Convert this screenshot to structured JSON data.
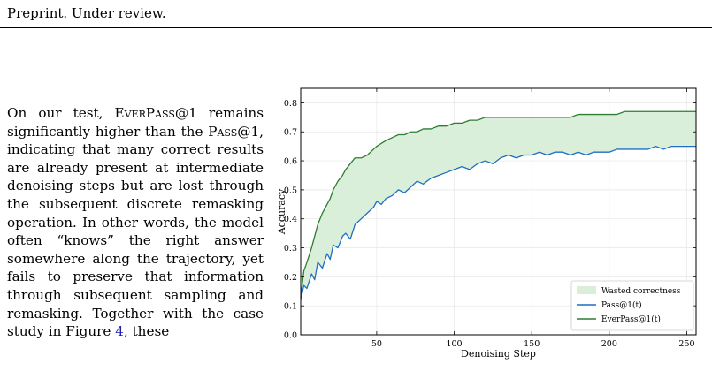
{
  "header": "Preprint. Under review.",
  "paragraph": {
    "p1": "On our test, ",
    "metric_everpass": "EverPass@1",
    "p2": " remains significantly higher than the ",
    "metric_pass": "Pass@1",
    "p3": ", indicating that many correct results are already present at intermediate denoising steps but are lost through the subsequent discrete remasking operation. In other words, the model often “knows” the right answer somewhere along the trajectory, yet fails to preserve that information through subsequent sampling and remasking. Together with the case study in Figure ",
    "fig_ref": "4",
    "p4": ", these"
  },
  "chart_data": {
    "type": "line",
    "xlabel": "Denoising Step",
    "ylabel": "Accuracy",
    "xlim": [
      1,
      256
    ],
    "ylim": [
      0.0,
      0.85
    ],
    "xticks": [
      50,
      100,
      150,
      200,
      250
    ],
    "yticks": [
      0.0,
      0.1,
      0.2,
      0.3,
      0.4,
      0.5,
      0.6,
      0.7,
      0.8
    ],
    "grid": true,
    "legend_position": "bottom-right",
    "fill_label": "Wasted correctness",
    "series": [
      {
        "name": "Pass@1(t)",
        "color": "#1f6fc2",
        "x": [
          1,
          3,
          5,
          8,
          10,
          12,
          15,
          18,
          20,
          22,
          25,
          28,
          30,
          33,
          36,
          40,
          44,
          48,
          50,
          53,
          56,
          60,
          64,
          68,
          72,
          76,
          80,
          85,
          90,
          95,
          100,
          105,
          110,
          115,
          120,
          125,
          130,
          135,
          140,
          145,
          150,
          155,
          160,
          165,
          170,
          175,
          180,
          185,
          190,
          195,
          200,
          205,
          210,
          215,
          220,
          225,
          230,
          235,
          240,
          245,
          250,
          256
        ],
        "values": [
          0.12,
          0.17,
          0.16,
          0.21,
          0.19,
          0.25,
          0.23,
          0.28,
          0.26,
          0.31,
          0.3,
          0.34,
          0.35,
          0.33,
          0.38,
          0.4,
          0.42,
          0.44,
          0.46,
          0.45,
          0.47,
          0.48,
          0.5,
          0.49,
          0.51,
          0.53,
          0.52,
          0.54,
          0.55,
          0.56,
          0.57,
          0.58,
          0.57,
          0.59,
          0.6,
          0.59,
          0.61,
          0.62,
          0.61,
          0.62,
          0.62,
          0.63,
          0.62,
          0.63,
          0.63,
          0.62,
          0.63,
          0.62,
          0.63,
          0.63,
          0.63,
          0.64,
          0.64,
          0.64,
          0.64,
          0.64,
          0.65,
          0.64,
          0.65,
          0.65,
          0.65,
          0.65
        ]
      },
      {
        "name": "EverPass@1(t)",
        "color": "#2e7d32",
        "x": [
          1,
          3,
          5,
          8,
          10,
          12,
          15,
          18,
          20,
          22,
          25,
          28,
          30,
          33,
          36,
          40,
          44,
          48,
          50,
          53,
          56,
          60,
          64,
          68,
          72,
          76,
          80,
          85,
          90,
          95,
          100,
          105,
          110,
          115,
          120,
          125,
          130,
          135,
          140,
          145,
          150,
          155,
          160,
          165,
          170,
          175,
          180,
          185,
          190,
          195,
          200,
          205,
          210,
          215,
          220,
          225,
          230,
          235,
          240,
          245,
          250,
          256
        ],
        "values": [
          0.13,
          0.22,
          0.25,
          0.3,
          0.34,
          0.38,
          0.42,
          0.45,
          0.47,
          0.5,
          0.53,
          0.55,
          0.57,
          0.59,
          0.61,
          0.61,
          0.62,
          0.64,
          0.65,
          0.66,
          0.67,
          0.68,
          0.69,
          0.69,
          0.7,
          0.7,
          0.71,
          0.71,
          0.72,
          0.72,
          0.73,
          0.73,
          0.74,
          0.74,
          0.75,
          0.75,
          0.75,
          0.75,
          0.75,
          0.75,
          0.75,
          0.75,
          0.75,
          0.75,
          0.75,
          0.75,
          0.76,
          0.76,
          0.76,
          0.76,
          0.76,
          0.76,
          0.77,
          0.77,
          0.77,
          0.77,
          0.77,
          0.77,
          0.77,
          0.77,
          0.77,
          0.77
        ]
      }
    ]
  }
}
